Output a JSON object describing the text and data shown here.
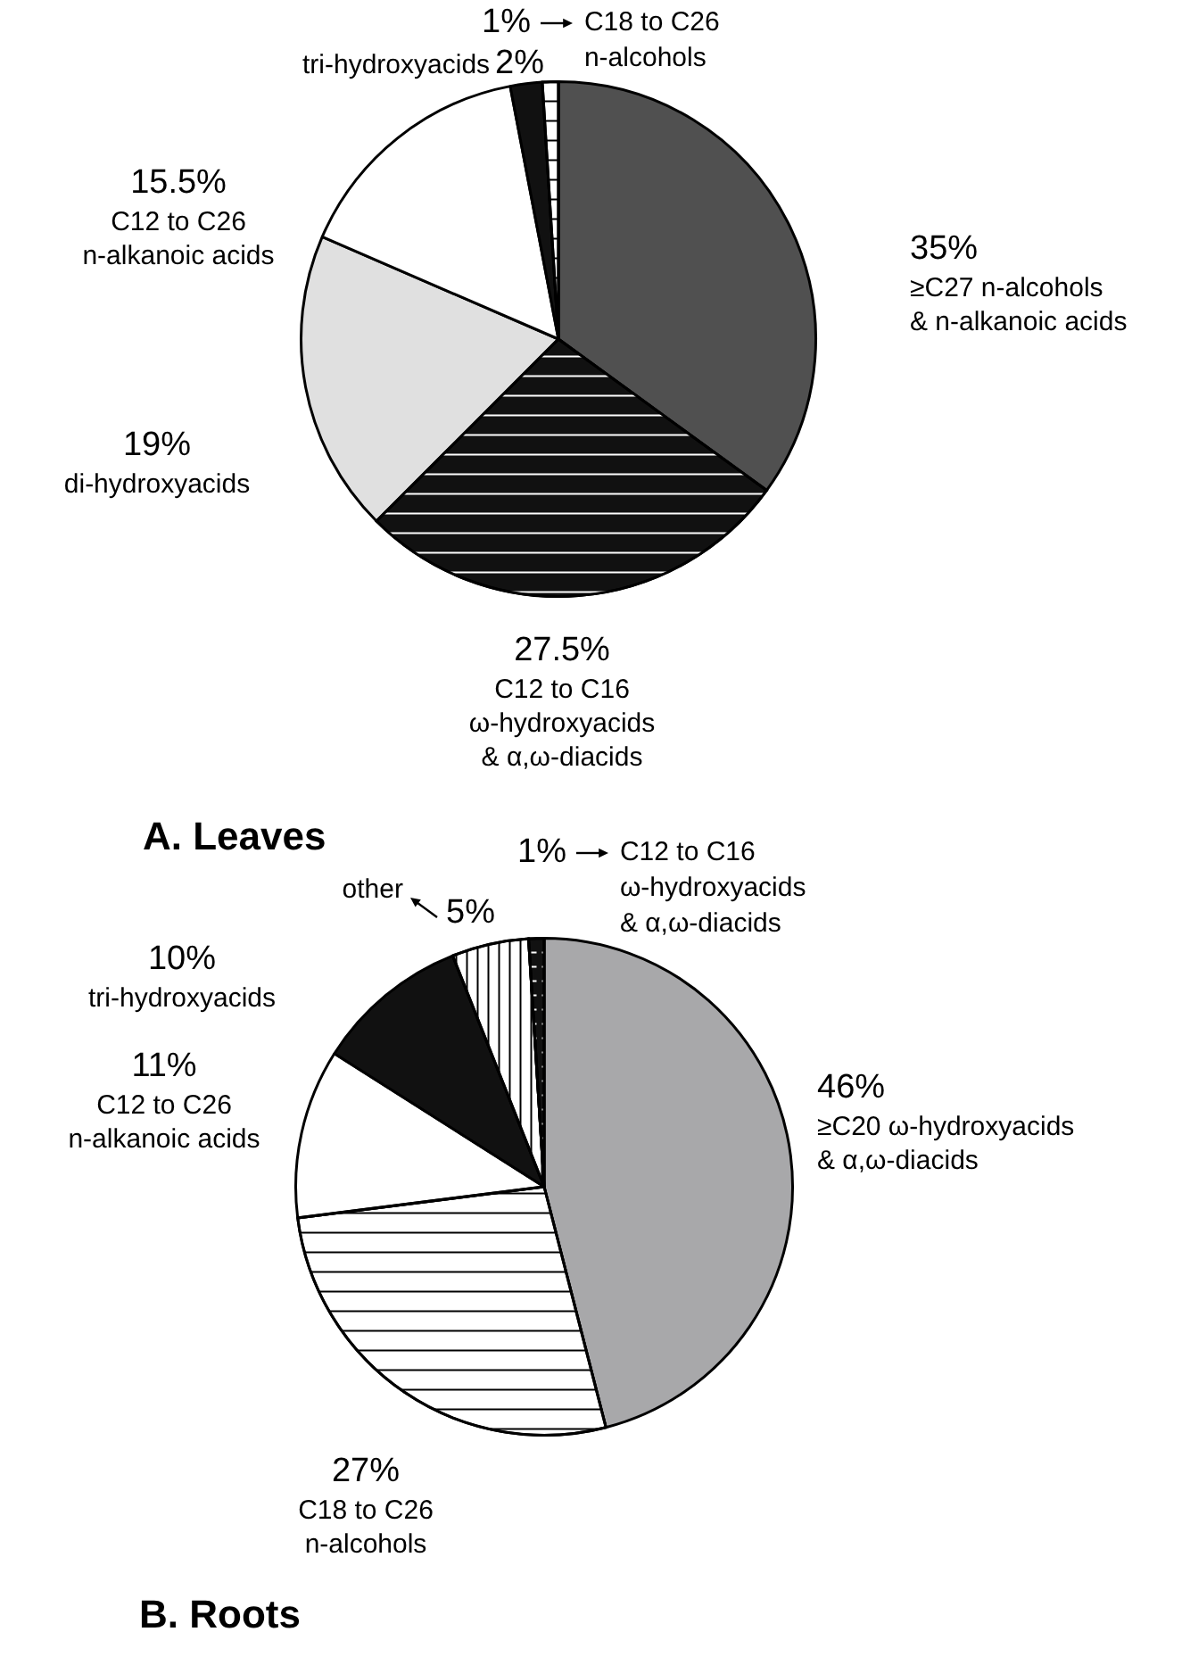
{
  "chart_data": [
    {
      "type": "pie",
      "title": "A.  Leaves",
      "categories": [
        "≥C27 n-alcohols\n& n-alkanoic acids",
        "C12 to C16\nω-hydroxyacids\n& α,ω-diacids",
        "di-hydroxyacids",
        "C12 to C26\nn-alkanoic acids",
        "tri-hydroxyacids",
        "C18 to C26\nn-alcohols"
      ],
      "values": [
        35,
        27.5,
        19,
        15.5,
        2,
        1
      ],
      "value_labels": [
        "35%",
        "27.5%",
        "19%",
        "15.5%",
        "2%",
        "1%"
      ],
      "colors": [
        "#505050",
        "#111111",
        "#e0e0e0",
        "#ffffff",
        "#111111",
        "#ffffff"
      ]
    },
    {
      "type": "pie",
      "title": "B.  Roots",
      "categories": [
        "≥C20 ω-hydroxyacids\n& α,ω-diacids",
        "C18 to C26\nn-alcohols",
        "C12 to C26\nn-alkanoic acids",
        "tri-hydroxyacids",
        "other",
        "C12 to C16\nω-hydroxyacids\n& α,ω-diacids"
      ],
      "values": [
        46,
        27,
        11,
        10,
        5,
        1
      ],
      "value_labels": [
        "46%",
        "27%",
        "11%",
        "10%",
        "5%",
        "1%"
      ],
      "colors": [
        "#a8a8aa",
        "#ffffff",
        "#ffffff",
        "#111111",
        "#ffffff",
        "#111111"
      ]
    }
  ]
}
